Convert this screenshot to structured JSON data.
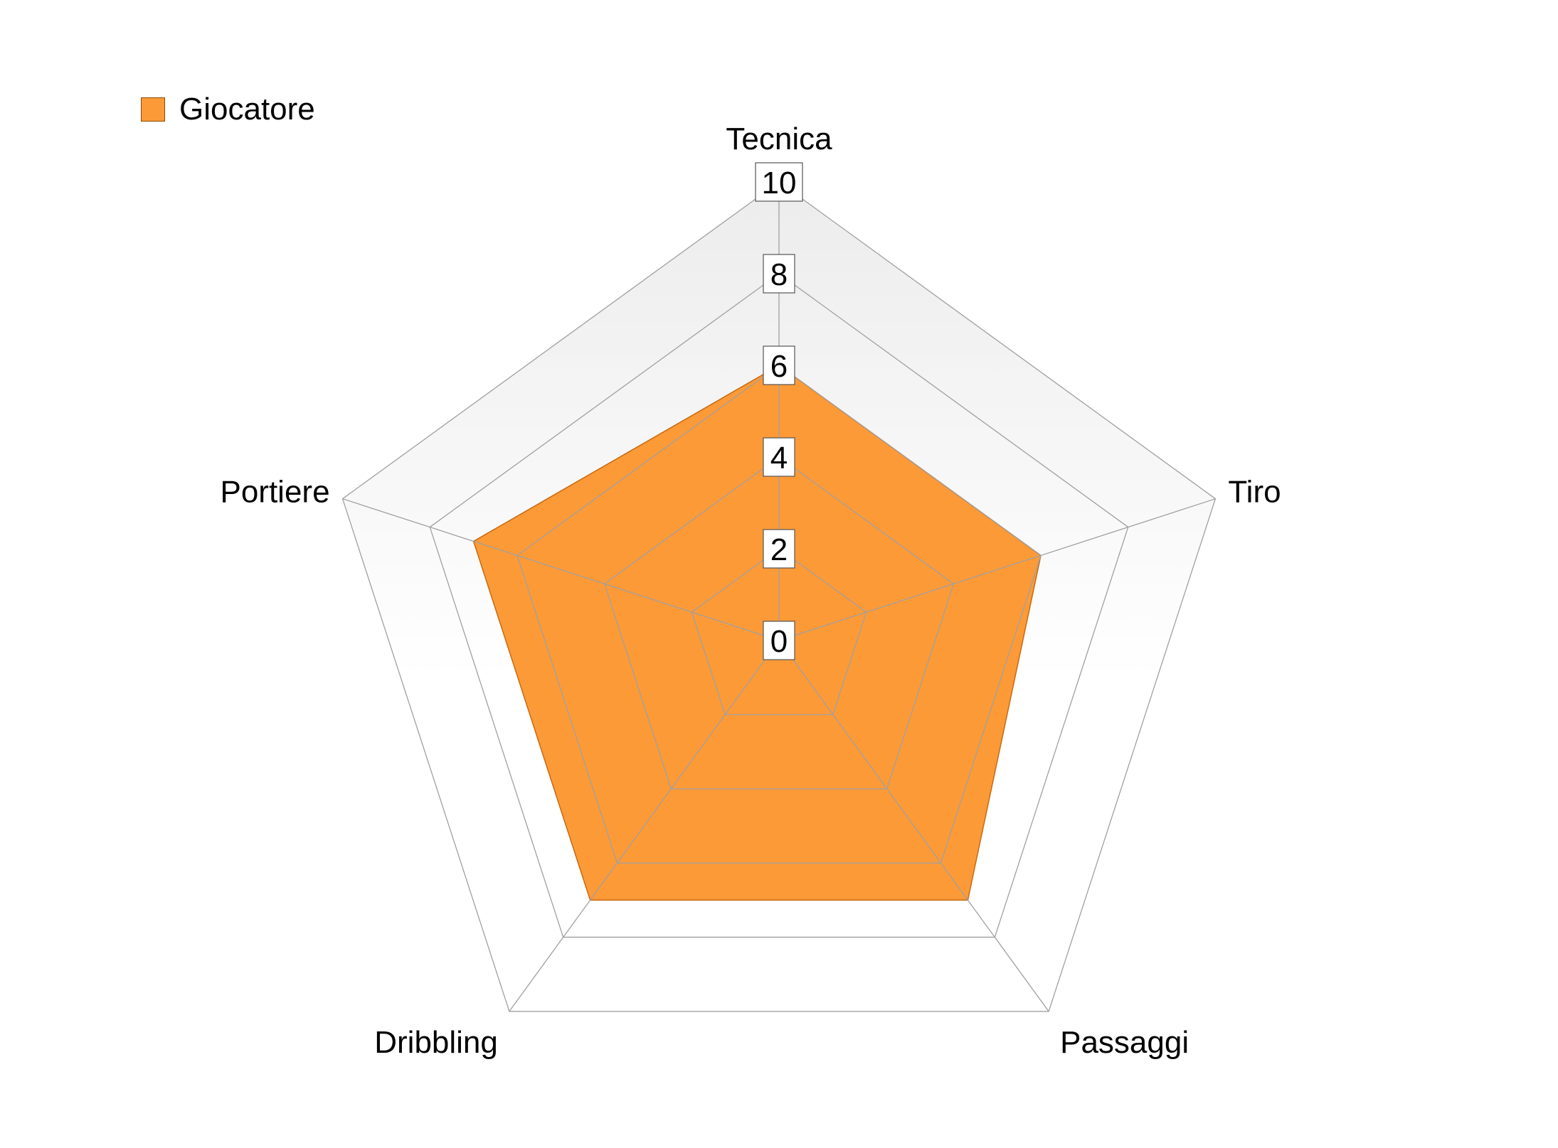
{
  "chart_data": {
    "type": "radar",
    "categories": [
      "Tecnica",
      "Tiro",
      "Passaggi",
      "Dribbling",
      "Portiere"
    ],
    "series": [
      {
        "name": "Giocatore",
        "values": [
          6,
          6,
          7,
          7,
          7
        ],
        "color": "#fc9a38"
      }
    ],
    "ticks": [
      "0",
      "2",
      "4",
      "6",
      "8",
      "10"
    ],
    "rmin": 0,
    "rmax": 10,
    "legend_position": "top-left",
    "grid": true
  },
  "legend": {
    "label": "Giocatore",
    "color": "#fc9a38"
  },
  "colors": {
    "series_fill": "#fc9a38",
    "series_stroke": "#c86a10",
    "grid_line": "#a0a0a0",
    "background_top": "#ececec",
    "background_bottom": "#ffffff"
  }
}
